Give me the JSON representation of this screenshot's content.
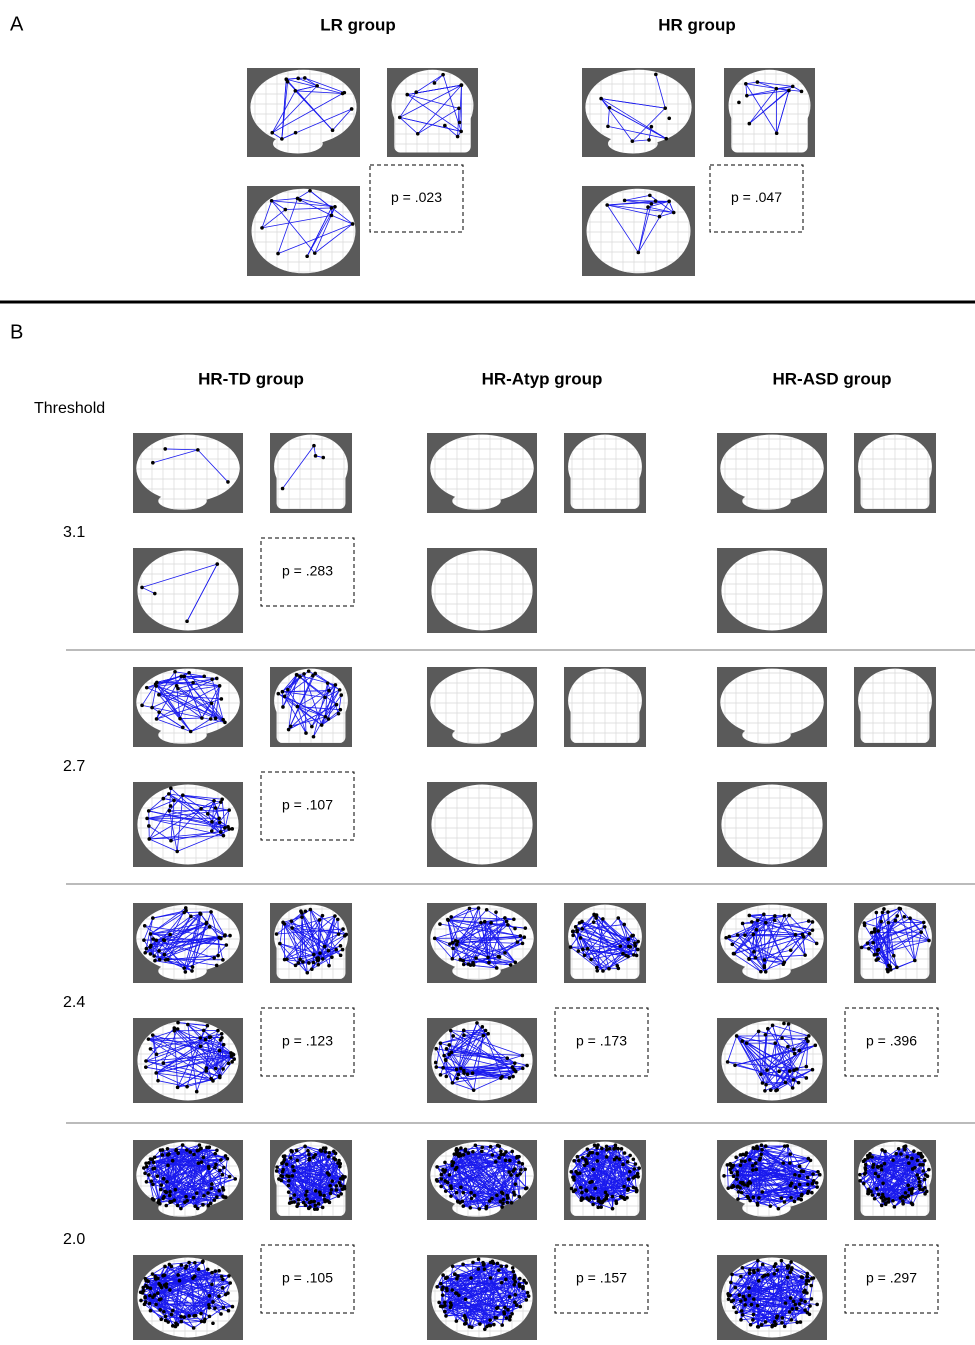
{
  "panel_a": {
    "label": "A",
    "groups": [
      {
        "title": "LR group",
        "p": "p = .023"
      },
      {
        "title": "HR group",
        "p": "p = .047"
      }
    ]
  },
  "panel_b": {
    "label": "B",
    "threshold_label": "Threshold",
    "groups": [
      "HR-TD group",
      "HR-Atyp group",
      "HR-ASD group"
    ],
    "rows": [
      {
        "threshold": "3.1",
        "p_values": [
          "p = .283",
          null,
          null
        ]
      },
      {
        "threshold": "2.7",
        "p_values": [
          "p = .107",
          null,
          null
        ]
      },
      {
        "threshold": "2.4",
        "p_values": [
          "p = .123",
          "p = .173",
          "p = .396"
        ]
      },
      {
        "threshold": "2.0",
        "p_values": [
          "p = .105",
          "p = .157",
          "p = .297"
        ]
      }
    ]
  }
}
